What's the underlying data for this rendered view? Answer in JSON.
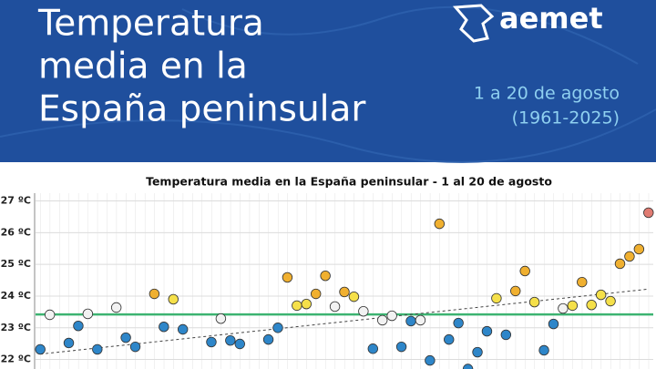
{
  "header": {
    "title_lines": [
      "Temperatura",
      "media en la",
      "España peninsular"
    ],
    "logo": "aemet",
    "subtitle_lines": [
      "1 a 20 de agosto",
      "(1961-2025)"
    ]
  },
  "chart_data": {
    "type": "scatter",
    "title": "Temperatura media en la España peninsular - 1 al 20 de agosto",
    "x": [
      1961,
      1962,
      1964,
      1965,
      1966,
      1967,
      1969,
      1970,
      1971,
      1973,
      1974,
      1975,
      1976,
      1979,
      1980,
      1981,
      1982,
      1985,
      1986,
      1987,
      1988,
      1989,
      1990,
      1991,
      1992,
      1993,
      1994,
      1995,
      1996,
      1997,
      1998,
      1999,
      2000,
      2001,
      2002,
      2003,
      2004,
      2005,
      2006,
      2007,
      2008,
      2009,
      2010,
      2011,
      2012,
      2013,
      2014,
      2015,
      2016,
      2017,
      2018,
      2019,
      2020,
      2021,
      2022,
      2023,
      2024,
      2025
    ],
    "values": [
      22.32,
      23.41,
      22.52,
      23.06,
      23.44,
      22.32,
      23.64,
      22.69,
      22.4,
      24.07,
      23.03,
      23.9,
      22.95,
      22.55,
      23.29,
      22.6,
      22.49,
      22.63,
      23.0,
      24.59,
      23.7,
      23.75,
      24.07,
      24.64,
      23.67,
      24.13,
      23.98,
      23.52,
      22.34,
      23.24,
      23.38,
      22.4,
      23.21,
      23.24,
      21.97,
      26.28,
      22.63,
      23.15,
      21.7,
      22.23,
      22.89,
      23.93,
      22.78,
      24.16,
      24.79,
      23.81,
      22.29,
      23.12,
      23.61,
      23.7,
      24.44,
      23.72,
      24.04,
      23.84,
      25.02,
      25.25,
      25.48,
      26.63
    ],
    "colors": [
      "#2e86c9",
      "#f2f2f2",
      "#2e86c9",
      "#2e86c9",
      "#f2f2f2",
      "#2e86c9",
      "#f2f2f2",
      "#2e86c9",
      "#2e86c9",
      "#f0b030",
      "#2e86c9",
      "#f5e04a",
      "#2e86c9",
      "#2e86c9",
      "#f2f2f2",
      "#2e86c9",
      "#2e86c9",
      "#2e86c9",
      "#2e86c9",
      "#f0b030",
      "#f5e04a",
      "#f5e04a",
      "#f0b030",
      "#f0b030",
      "#f2f2f2",
      "#f0b030",
      "#f5e04a",
      "#f2f2f2",
      "#2e86c9",
      "#f2f2f2",
      "#f2f2f2",
      "#2e86c9",
      "#2e86c9",
      "#f2f2f2",
      "#2e86c9",
      "#f0b030",
      "#2e86c9",
      "#2e86c9",
      "#2e86c9",
      "#2e86c9",
      "#2e86c9",
      "#f5e04a",
      "#2e86c9",
      "#f0b030",
      "#f0b030",
      "#f5e04a",
      "#2e86c9",
      "#2e86c9",
      "#f2f2f2",
      "#f5e04a",
      "#f0b030",
      "#f5e04a",
      "#f5e04a",
      "#f5e04a",
      "#f0b030",
      "#f0b030",
      "#f0b030",
      "#e07b72"
    ],
    "xlim": [
      1960.5,
      2025.5
    ],
    "ylim": [
      21.7,
      27.2
    ],
    "yticks": [
      {
        "value": 22,
        "label": "22 ºC"
      },
      {
        "value": 23,
        "label": "23 ºC"
      },
      {
        "value": 24,
        "label": "24 ºC"
      },
      {
        "value": 25,
        "label": "25 ºC"
      },
      {
        "value": 26,
        "label": "26 ºC"
      },
      {
        "value": 27,
        "label": "27 ºC"
      }
    ],
    "grid": true,
    "reference_line": {
      "value": 23.42,
      "color": "#3cb371"
    },
    "trend_line": {
      "x": [
        1961,
        2025
      ],
      "values": [
        22.17,
        24.22
      ]
    }
  }
}
